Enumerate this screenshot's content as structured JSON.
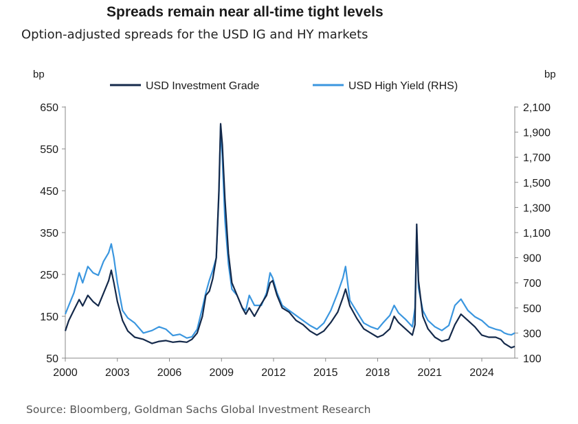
{
  "title": "Spreads remain near all-time tight levels",
  "subtitle": "Option-adjusted spreads for the USD IG and HY markets",
  "source": "Source: Bloomberg, Goldman Sachs Global Investment Research",
  "chart_data": {
    "type": "line",
    "title": "Spreads remain near all-time tight levels",
    "subtitle": "Option-adjusted spreads for the USD IG and HY markets",
    "y_left_unit": "bp",
    "y_right_unit": "bp",
    "y_left_range": [
      50,
      650
    ],
    "y_right_range": [
      100,
      2100
    ],
    "y_left_ticks": [
      "650",
      "550",
      "450",
      "350",
      "250",
      "150",
      "50"
    ],
    "y_right_ticks": [
      "2,100",
      "1,900",
      "1,700",
      "1,500",
      "1,300",
      "1,100",
      "900",
      "700",
      "500",
      "300",
      "100"
    ],
    "x_range": [
      2000,
      2025.9
    ],
    "x_ticks": [
      "2000",
      "2003",
      "2006",
      "2009",
      "2012",
      "2015",
      "2018",
      "2021",
      "2024"
    ],
    "legend_position": "top",
    "grid": false,
    "series": [
      {
        "name": "USD Investment Grade",
        "axis": "left",
        "color": "#14294a",
        "x": [
          2000.0,
          2000.2,
          2000.5,
          2000.8,
          2001.0,
          2001.3,
          2001.6,
          2001.9,
          2002.2,
          2002.5,
          2002.65,
          2002.8,
          2003.0,
          2003.3,
          2003.6,
          2004.0,
          2004.5,
          2005.0,
          2005.4,
          2005.8,
          2006.2,
          2006.6,
          2007.0,
          2007.3,
          2007.6,
          2007.9,
          2008.1,
          2008.3,
          2008.5,
          2008.7,
          2008.85,
          2008.95,
          2009.05,
          2009.2,
          2009.4,
          2009.6,
          2009.9,
          2010.2,
          2010.4,
          2010.6,
          2010.9,
          2011.3,
          2011.6,
          2011.8,
          2011.95,
          2012.2,
          2012.5,
          2012.9,
          2013.3,
          2013.7,
          2014.1,
          2014.5,
          2014.9,
          2015.3,
          2015.7,
          2016.0,
          2016.15,
          2016.4,
          2016.8,
          2017.2,
          2017.6,
          2018.0,
          2018.3,
          2018.7,
          2018.95,
          2019.2,
          2019.6,
          2020.0,
          2020.15,
          2020.25,
          2020.35,
          2020.6,
          2020.9,
          2021.3,
          2021.7,
          2022.1,
          2022.45,
          2022.8,
          2023.2,
          2023.6,
          2024.0,
          2024.4,
          2024.8,
          2025.1,
          2025.3,
          2025.5,
          2025.7,
          2025.9
        ],
        "values": [
          115,
          140,
          165,
          190,
          175,
          200,
          185,
          175,
          205,
          235,
          260,
          230,
          185,
          140,
          115,
          100,
          95,
          85,
          90,
          92,
          88,
          90,
          88,
          95,
          110,
          150,
          200,
          210,
          240,
          290,
          450,
          610,
          560,
          430,
          300,
          230,
          200,
          170,
          155,
          170,
          150,
          180,
          200,
          230,
          235,
          200,
          170,
          160,
          140,
          130,
          115,
          105,
          115,
          135,
          160,
          195,
          215,
          175,
          145,
          120,
          110,
          100,
          105,
          120,
          150,
          135,
          120,
          105,
          130,
          370,
          235,
          150,
          120,
          100,
          90,
          95,
          130,
          155,
          140,
          125,
          105,
          100,
          100,
          95,
          85,
          80,
          75,
          78
        ]
      },
      {
        "name": "USD High Yield (RHS)",
        "axis": "right",
        "color": "#3a96df",
        "x": [
          2000.0,
          2000.2,
          2000.5,
          2000.8,
          2001.0,
          2001.3,
          2001.6,
          2001.9,
          2002.2,
          2002.5,
          2002.65,
          2002.8,
          2003.0,
          2003.3,
          2003.6,
          2004.0,
          2004.5,
          2005.0,
          2005.4,
          2005.8,
          2006.2,
          2006.6,
          2007.0,
          2007.3,
          2007.6,
          2007.9,
          2008.1,
          2008.3,
          2008.5,
          2008.7,
          2008.85,
          2008.95,
          2009.05,
          2009.2,
          2009.4,
          2009.6,
          2009.9,
          2010.2,
          2010.4,
          2010.6,
          2010.9,
          2011.3,
          2011.6,
          2011.8,
          2011.95,
          2012.2,
          2012.5,
          2012.9,
          2013.3,
          2013.7,
          2014.1,
          2014.5,
          2014.9,
          2015.3,
          2015.7,
          2016.0,
          2016.15,
          2016.4,
          2016.8,
          2017.2,
          2017.6,
          2018.0,
          2018.3,
          2018.7,
          2018.95,
          2019.2,
          2019.6,
          2020.0,
          2020.15,
          2020.25,
          2020.35,
          2020.6,
          2020.9,
          2021.3,
          2021.7,
          2022.1,
          2022.45,
          2022.8,
          2023.2,
          2023.6,
          2024.0,
          2024.4,
          2024.8,
          2025.1,
          2025.3,
          2025.5,
          2025.7,
          2025.9
        ],
        "values": [
          450,
          520,
          620,
          780,
          700,
          830,
          780,
          760,
          870,
          940,
          1010,
          900,
          700,
          480,
          420,
          380,
          300,
          320,
          350,
          330,
          280,
          290,
          260,
          270,
          330,
          500,
          620,
          720,
          800,
          900,
          1400,
          1950,
          1700,
          1200,
          850,
          650,
          600,
          500,
          480,
          600,
          520,
          520,
          620,
          780,
          740,
          620,
          520,
          480,
          440,
          400,
          360,
          330,
          380,
          480,
          620,
          740,
          830,
          560,
          470,
          380,
          350,
          330,
          380,
          440,
          520,
          460,
          410,
          350,
          500,
          1120,
          660,
          480,
          400,
          350,
          320,
          360,
          520,
          570,
          480,
          430,
          400,
          350,
          330,
          320,
          300,
          290,
          285,
          300
        ]
      }
    ]
  }
}
